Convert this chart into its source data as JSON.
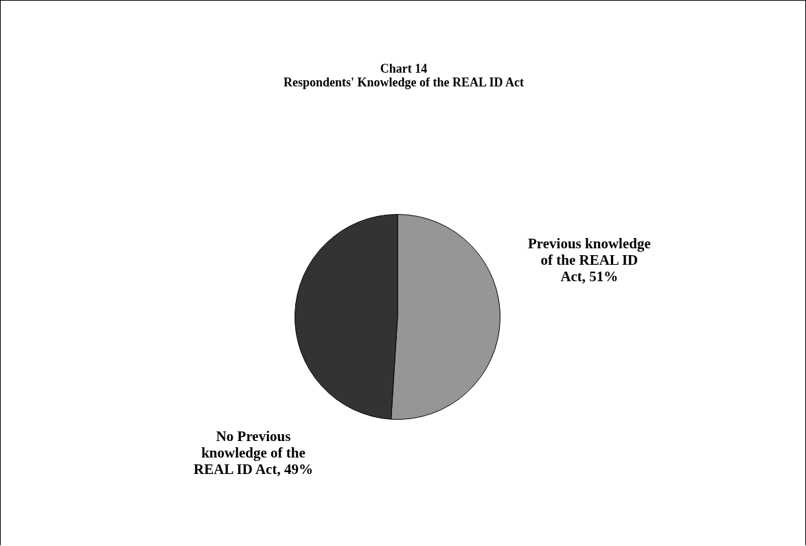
{
  "chart_data": {
    "type": "pie",
    "title": "Chart 14",
    "subtitle": "Respondents' Knowledge of the REAL ID Act",
    "categories": [
      "Previous knowledge of the REAL ID Act",
      "No Previous knowledge of the REAL ID Act"
    ],
    "values": [
      51,
      49
    ],
    "colors": [
      "#969696",
      "#333333"
    ],
    "value_labels": [
      "51%",
      "49%"
    ],
    "legend": false
  }
}
